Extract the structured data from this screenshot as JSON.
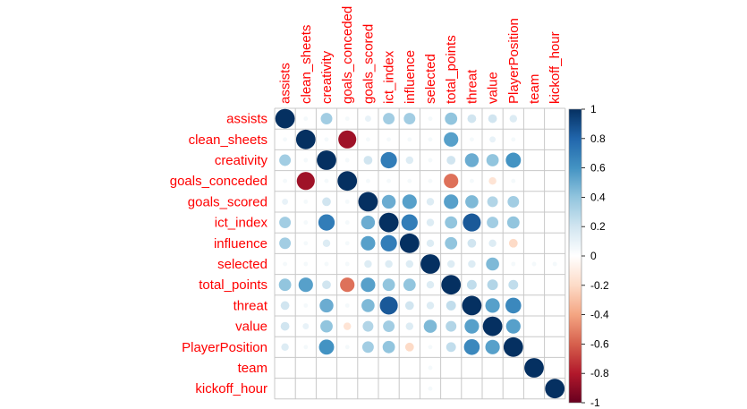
{
  "chart_data": {
    "type": "heatmap",
    "method": "circle",
    "layout": "full",
    "variables": [
      "assists",
      "clean_sheets",
      "creativity",
      "goals_conceded",
      "goals_scored",
      "ict_index",
      "influence",
      "selected",
      "total_points",
      "threat",
      "value",
      "PlayerPosition",
      "team",
      "kickoff_hour"
    ],
    "matrix": [
      [
        1.0,
        0.05,
        0.35,
        0.05,
        0.1,
        0.35,
        0.35,
        0.05,
        0.4,
        0.2,
        0.2,
        0.15,
        0.0,
        0.0
      ],
      [
        0.05,
        1.0,
        0.05,
        -0.85,
        0.05,
        0.05,
        0.05,
        0.05,
        0.55,
        0.05,
        0.1,
        0.05,
        0.0,
        0.0
      ],
      [
        0.35,
        0.05,
        1.0,
        0.05,
        0.2,
        0.7,
        0.15,
        0.05,
        0.2,
        0.5,
        0.4,
        0.6,
        0.0,
        0.0
      ],
      [
        0.05,
        -0.85,
        0.05,
        1.0,
        0.05,
        0.05,
        0.05,
        0.05,
        -0.55,
        0.05,
        -0.15,
        0.05,
        0.0,
        0.0
      ],
      [
        0.1,
        0.05,
        0.2,
        0.05,
        1.0,
        0.5,
        0.55,
        0.15,
        0.55,
        0.45,
        0.3,
        0.35,
        0.0,
        0.0
      ],
      [
        0.35,
        0.05,
        0.7,
        0.05,
        0.5,
        1.0,
        0.7,
        0.15,
        0.4,
        0.85,
        0.35,
        0.4,
        0.0,
        0.0
      ],
      [
        0.35,
        0.05,
        0.15,
        0.05,
        0.55,
        0.7,
        1.0,
        0.15,
        0.4,
        0.2,
        0.15,
        -0.2,
        0.0,
        0.0
      ],
      [
        0.05,
        0.05,
        0.05,
        0.05,
        0.15,
        0.15,
        0.15,
        1.0,
        0.15,
        0.15,
        0.45,
        0.05,
        0.05,
        0.05
      ],
      [
        0.4,
        0.55,
        0.2,
        -0.55,
        0.55,
        0.4,
        0.4,
        0.15,
        1.0,
        0.25,
        0.3,
        0.25,
        0.0,
        0.0
      ],
      [
        0.2,
        0.05,
        0.5,
        0.05,
        0.45,
        0.85,
        0.2,
        0.15,
        0.25,
        1.0,
        0.55,
        0.65,
        0.0,
        0.0
      ],
      [
        0.2,
        0.1,
        0.4,
        -0.15,
        0.3,
        0.35,
        0.15,
        0.45,
        0.3,
        0.55,
        1.0,
        0.55,
        0.0,
        0.0
      ],
      [
        0.15,
        0.05,
        0.6,
        0.05,
        0.35,
        0.4,
        -0.2,
        0.05,
        0.25,
        0.65,
        0.55,
        1.0,
        0.0,
        0.0
      ],
      [
        0.0,
        0.0,
        0.0,
        0.0,
        0.0,
        0.0,
        0.0,
        0.05,
        0.0,
        0.0,
        0.0,
        0.0,
        1.0,
        0.0
      ],
      [
        0.0,
        0.0,
        0.0,
        0.0,
        0.0,
        0.0,
        0.0,
        0.05,
        0.0,
        0.0,
        0.0,
        0.0,
        0.0,
        1.0
      ]
    ],
    "colorbar": {
      "range": [
        -1,
        1
      ],
      "ticks": [
        "1",
        "0.8",
        "0.6",
        "0.4",
        "0.2",
        "0",
        "-0.2",
        "-0.4",
        "-0.6",
        "-0.8",
        "-1"
      ],
      "palette": [
        "#67001F",
        "#B2182B",
        "#D6604D",
        "#F4A582",
        "#FDDBC7",
        "#FFFFFF",
        "#D1E5F0",
        "#92C5DE",
        "#4393C3",
        "#2166AC",
        "#053061"
      ]
    },
    "label_color": "#ff0000",
    "grid": true
  }
}
